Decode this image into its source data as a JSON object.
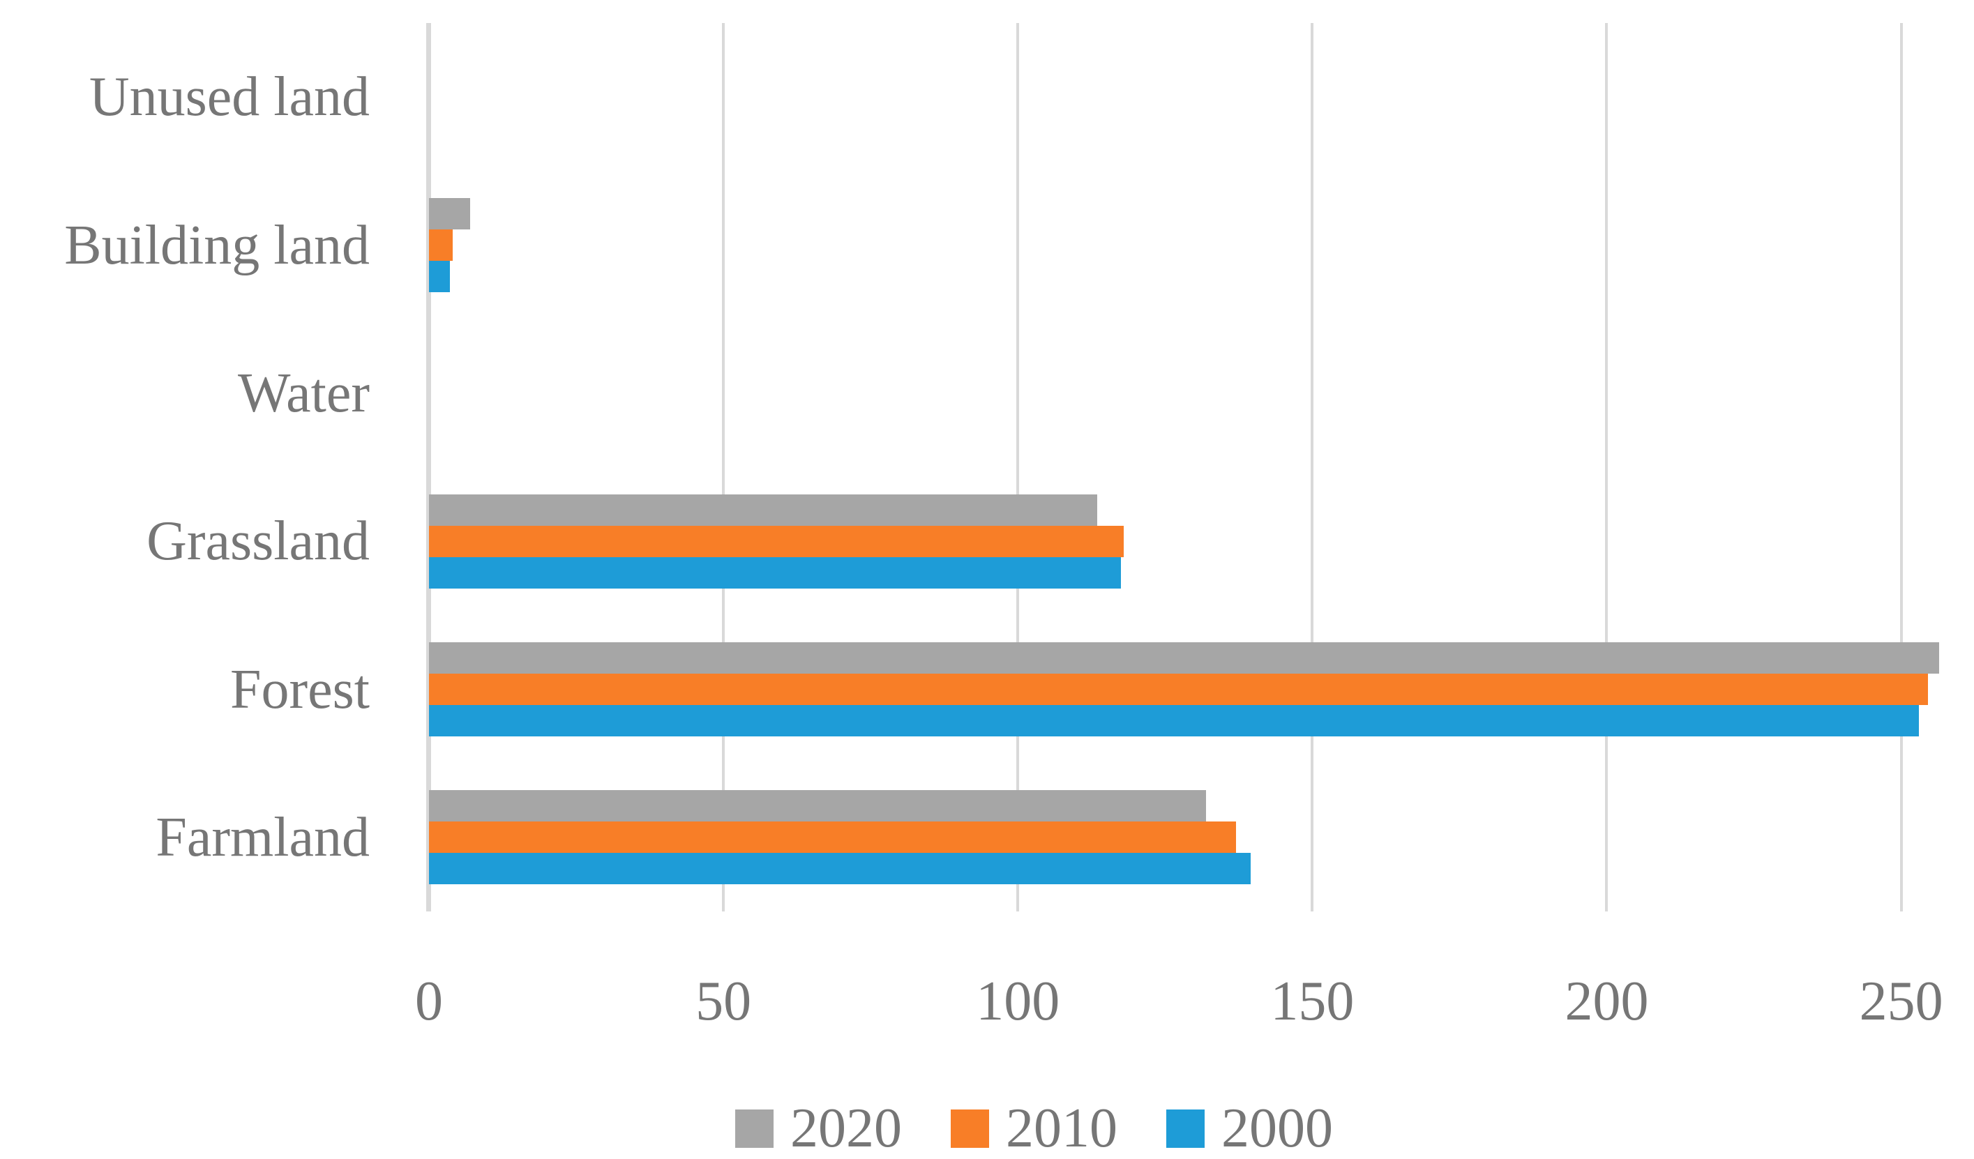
{
  "chart_data": {
    "type": "bar",
    "orientation": "horizontal",
    "title": "",
    "xlabel": "",
    "ylabel": "",
    "grid": true,
    "legend_position": "bottom",
    "categories": [
      "Unused land",
      "Building land",
      "Water",
      "Grassland",
      "Forest",
      "Farmland"
    ],
    "series": [
      {
        "name": "2020",
        "color": "#a6a6a6",
        "values": [
          0,
          7,
          0,
          113.5,
          256.5,
          132
        ]
      },
      {
        "name": "2010",
        "color": "#f87e27",
        "values": [
          0,
          4,
          0,
          118,
          254.5,
          137
        ]
      },
      {
        "name": "2000",
        "color": "#1e9cd7",
        "values": [
          0,
          3.5,
          0,
          117.5,
          253,
          139.5
        ]
      }
    ],
    "x_axis": {
      "min": 0,
      "max": 260,
      "tick_interval": 50,
      "ticks": [
        0,
        50,
        100,
        150,
        200,
        250
      ],
      "tick_labels": [
        "0",
        "50",
        "100",
        "150",
        "200",
        "250"
      ]
    },
    "colors": {
      "gridline": "#d9d9d9",
      "axis_line": "#d9d9d9",
      "text": "#767676",
      "background": "#ffffff"
    }
  }
}
